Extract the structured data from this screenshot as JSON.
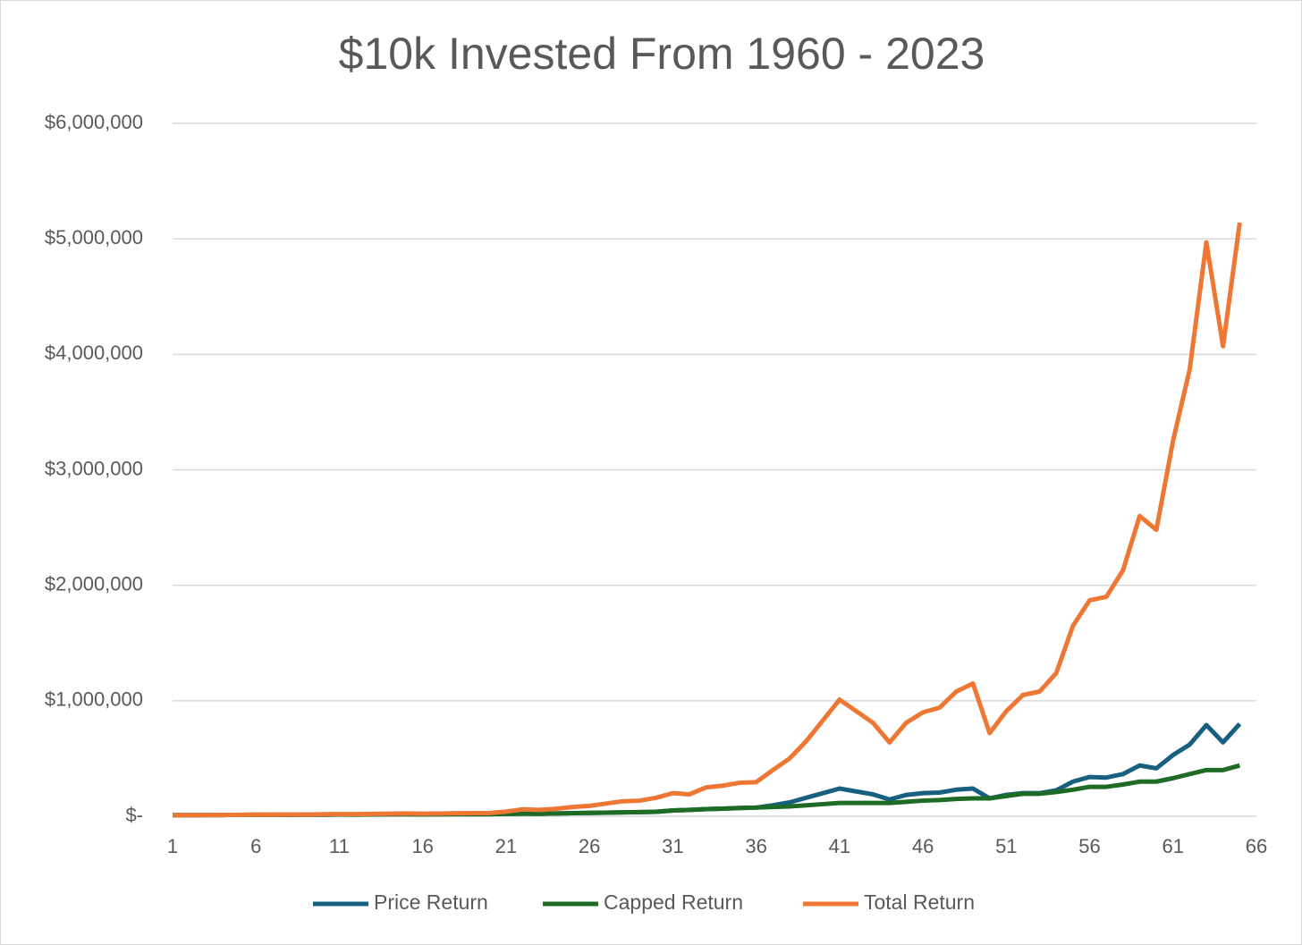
{
  "chart_data": {
    "type": "line",
    "title": "$10k Invested From 1960 - 2023",
    "x": [
      1,
      2,
      3,
      4,
      5,
      6,
      7,
      8,
      9,
      10,
      11,
      12,
      13,
      14,
      15,
      16,
      17,
      18,
      19,
      20,
      21,
      22,
      23,
      24,
      25,
      26,
      27,
      28,
      29,
      30,
      31,
      32,
      33,
      34,
      35,
      36,
      37,
      38,
      39,
      40,
      41,
      42,
      43,
      44,
      45,
      46,
      47,
      48,
      49,
      50,
      51,
      52,
      53,
      54,
      55,
      56,
      57,
      58,
      59,
      60,
      61,
      62,
      63,
      64,
      65
    ],
    "xlim": [
      1,
      66
    ],
    "xticks": [
      1,
      6,
      11,
      16,
      21,
      26,
      31,
      36,
      41,
      46,
      51,
      56,
      61,
      66
    ],
    "ylim": [
      0,
      6000000
    ],
    "yticks": [
      {
        "value": 0,
        "label": "$-"
      },
      {
        "value": 1000000,
        "label": "$1,000,000"
      },
      {
        "value": 2000000,
        "label": "$2,000,000"
      },
      {
        "value": 3000000,
        "label": "$3,000,000"
      },
      {
        "value": 4000000,
        "label": "$4,000,000"
      },
      {
        "value": 5000000,
        "label": "$5,000,000"
      },
      {
        "value": 6000000,
        "label": "$6,000,000"
      }
    ],
    "grid": true,
    "legend": "bottom",
    "series": [
      {
        "name": "Price Return",
        "color": "#17607f",
        "values": [
          10000,
          10000,
          11000,
          11000,
          12000,
          13000,
          13000,
          13000,
          14000,
          14000,
          15000,
          15000,
          16000,
          17000,
          17000,
          16000,
          17000,
          18000,
          18000,
          18000,
          20000,
          22000,
          21000,
          24000,
          27000,
          29000,
          31000,
          34000,
          36000,
          39000,
          50000,
          55000,
          62000,
          66000,
          72000,
          75000,
          95000,
          120000,
          160000,
          200000,
          240000,
          215000,
          190000,
          145000,
          185000,
          200000,
          205000,
          230000,
          240000,
          155000,
          185000,
          200000,
          200000,
          225000,
          300000,
          340000,
          335000,
          365000,
          440000,
          415000,
          530000,
          620000,
          790000,
          640000,
          800000
        ]
      },
      {
        "name": "Capped Return",
        "color": "#1e6b26",
        "values": [
          10000,
          10000,
          11000,
          11000,
          12000,
          13000,
          13000,
          13000,
          14000,
          14000,
          15000,
          15000,
          16000,
          17000,
          17000,
          16000,
          17000,
          18000,
          18000,
          18000,
          20000,
          22000,
          21000,
          24000,
          27000,
          29000,
          31000,
          34000,
          36000,
          39000,
          50000,
          55000,
          62000,
          66000,
          72000,
          75000,
          80000,
          85000,
          95000,
          105000,
          115000,
          115000,
          115000,
          115000,
          125000,
          135000,
          140000,
          150000,
          155000,
          155000,
          175000,
          195000,
          195000,
          210000,
          230000,
          255000,
          255000,
          275000,
          300000,
          300000,
          330000,
          365000,
          400000,
          400000,
          440000
        ]
      },
      {
        "name": "Total Return",
        "color": "#ee7733",
        "values": [
          10000,
          10000,
          11000,
          11000,
          12000,
          14000,
          14000,
          15000,
          15000,
          17000,
          18000,
          18000,
          20000,
          22000,
          24000,
          22000,
          23000,
          26000,
          27000,
          28000,
          40000,
          60000,
          55000,
          65000,
          80000,
          90000,
          110000,
          130000,
          135000,
          160000,
          200000,
          190000,
          250000,
          265000,
          290000,
          295000,
          400000,
          500000,
          650000,
          830000,
          1010000,
          910000,
          810000,
          640000,
          810000,
          900000,
          940000,
          1080000,
          1150000,
          720000,
          910000,
          1050000,
          1080000,
          1240000,
          1650000,
          1870000,
          1900000,
          2130000,
          2600000,
          2480000,
          3250000,
          3870000,
          4970000,
          4070000,
          5140000
        ]
      }
    ]
  }
}
